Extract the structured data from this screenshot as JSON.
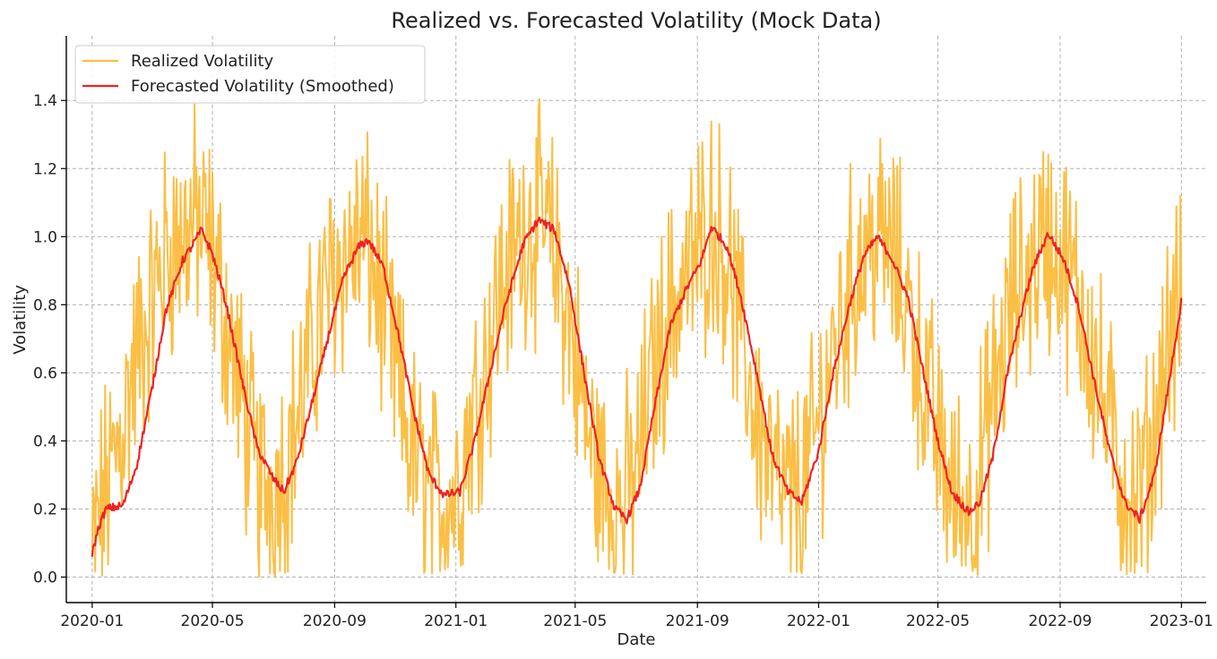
{
  "chart_data": {
    "type": "line",
    "title": "Realized vs. Forecasted Volatility (Mock Data)",
    "xlabel": "Date",
    "ylabel": "Volatility",
    "xlim": [
      "2019-12-06",
      "2023-01-26"
    ],
    "ylim": [
      -0.075,
      1.59
    ],
    "x_ticks": [
      "2020-01",
      "2020-05",
      "2020-09",
      "2021-01",
      "2021-05",
      "2021-09",
      "2022-01",
      "2022-05",
      "2022-09",
      "2023-01"
    ],
    "y_ticks": [
      "0.0",
      "0.2",
      "0.4",
      "0.6",
      "0.8",
      "1.0",
      "1.2",
      "1.4"
    ],
    "y_tick_values": [
      0.0,
      0.2,
      0.4,
      0.6,
      0.8,
      1.0,
      1.2,
      1.4
    ],
    "grid": true,
    "legend_position": "top-left",
    "colors": {
      "realized": "#fbbf45",
      "forecast": "#ee2222",
      "grid": "#b0b0b0",
      "axis": "#000000"
    },
    "series": [
      {
        "name": "Realized Volatility",
        "style": "jagged",
        "x": [
          "2020-01-01",
          "2020-01-10",
          "2020-01-20",
          "2020-02-01",
          "2020-02-15",
          "2020-03-01",
          "2020-03-15",
          "2020-04-01",
          "2020-04-15",
          "2020-05-01",
          "2020-05-15",
          "2020-06-01",
          "2020-06-15",
          "2020-07-01",
          "2020-07-15",
          "2020-08-01",
          "2020-08-15",
          "2020-09-01",
          "2020-09-15",
          "2020-10-01",
          "2020-10-15",
          "2020-11-01",
          "2020-11-15",
          "2020-12-01",
          "2020-12-15",
          "2021-01-01",
          "2021-01-15",
          "2021-02-01",
          "2021-02-15",
          "2021-03-01",
          "2021-03-15",
          "2021-04-01",
          "2021-04-15",
          "2021-05-01",
          "2021-05-15",
          "2021-06-01",
          "2021-06-15",
          "2021-07-01",
          "2021-07-15",
          "2021-08-01",
          "2021-08-15",
          "2021-09-01",
          "2021-09-15",
          "2021-10-01",
          "2021-10-15",
          "2021-11-01",
          "2021-11-15",
          "2021-12-01",
          "2021-12-15",
          "2022-01-01",
          "2022-01-15",
          "2022-02-01",
          "2022-02-15",
          "2022-03-01",
          "2022-03-15",
          "2022-04-01",
          "2022-04-15",
          "2022-05-01",
          "2022-05-15",
          "2022-06-01",
          "2022-06-15",
          "2022-07-01",
          "2022-07-15",
          "2022-08-01",
          "2022-08-15",
          "2022-09-01",
          "2022-09-15",
          "2022-10-01",
          "2022-10-15",
          "2022-11-01",
          "2022-11-15",
          "2022-12-01",
          "2022-12-15",
          "2023-01-01"
        ],
        "values": [
          0.05,
          0.2,
          0.3,
          0.45,
          0.65,
          0.8,
          0.95,
          1.0,
          1.05,
          0.95,
          0.75,
          0.5,
          0.3,
          0.25,
          0.35,
          0.55,
          0.75,
          0.9,
          0.95,
          1.0,
          0.85,
          0.6,
          0.4,
          0.25,
          0.22,
          0.25,
          0.45,
          0.65,
          0.85,
          0.95,
          1.05,
          1.02,
          0.9,
          0.65,
          0.4,
          0.25,
          0.2,
          0.3,
          0.55,
          0.75,
          0.85,
          0.95,
          1.05,
          0.95,
          0.7,
          0.45,
          0.3,
          0.22,
          0.25,
          0.45,
          0.65,
          0.85,
          0.95,
          1.0,
          0.95,
          0.8,
          0.6,
          0.4,
          0.25,
          0.2,
          0.35,
          0.6,
          0.8,
          0.9,
          1.0,
          0.95,
          0.85,
          0.7,
          0.5,
          0.3,
          0.2,
          0.35,
          0.65,
          0.8
        ]
      },
      {
        "name": "Forecasted Volatility (Smoothed)",
        "style": "smooth",
        "x": [
          "2020-01-01",
          "2020-01-08",
          "2020-01-15",
          "2020-02-01",
          "2020-02-15",
          "2020-03-01",
          "2020-03-15",
          "2020-04-01",
          "2020-04-10",
          "2020-04-20",
          "2020-05-01",
          "2020-05-15",
          "2020-06-01",
          "2020-06-15",
          "2020-07-01",
          "2020-07-12",
          "2020-07-25",
          "2020-08-10",
          "2020-08-25",
          "2020-09-10",
          "2020-09-25",
          "2020-10-05",
          "2020-10-20",
          "2020-11-05",
          "2020-11-20",
          "2020-12-05",
          "2020-12-20",
          "2021-01-05",
          "2021-01-20",
          "2021-02-05",
          "2021-02-20",
          "2021-03-10",
          "2021-03-25",
          "2021-04-10",
          "2021-04-25",
          "2021-05-10",
          "2021-05-25",
          "2021-06-10",
          "2021-06-22",
          "2021-07-05",
          "2021-07-20",
          "2021-08-05",
          "2021-08-20",
          "2021-09-05",
          "2021-09-15",
          "2021-10-01",
          "2021-10-15",
          "2021-11-01",
          "2021-11-15",
          "2021-12-01",
          "2021-12-15",
          "2022-01-01",
          "2022-01-15",
          "2022-02-01",
          "2022-02-15",
          "2022-03-01",
          "2022-03-15",
          "2022-04-01",
          "2022-04-15",
          "2022-05-01",
          "2022-05-15",
          "2022-06-01",
          "2022-06-12",
          "2022-06-25",
          "2022-07-10",
          "2022-07-25",
          "2022-08-05",
          "2022-08-20",
          "2022-09-05",
          "2022-09-20",
          "2022-10-05",
          "2022-10-20",
          "2022-11-05",
          "2022-11-20",
          "2022-12-05",
          "2022-12-20",
          "2023-01-01"
        ],
        "values": [
          0.07,
          0.15,
          0.2,
          0.21,
          0.33,
          0.55,
          0.78,
          0.93,
          0.97,
          1.02,
          0.95,
          0.8,
          0.56,
          0.38,
          0.29,
          0.25,
          0.34,
          0.52,
          0.7,
          0.88,
          0.97,
          0.99,
          0.91,
          0.7,
          0.48,
          0.3,
          0.24,
          0.25,
          0.4,
          0.61,
          0.8,
          0.98,
          1.05,
          1.02,
          0.86,
          0.6,
          0.35,
          0.2,
          0.17,
          0.26,
          0.5,
          0.74,
          0.84,
          0.93,
          1.03,
          0.97,
          0.82,
          0.58,
          0.36,
          0.25,
          0.22,
          0.37,
          0.59,
          0.8,
          0.94,
          1.0,
          0.94,
          0.82,
          0.62,
          0.4,
          0.25,
          0.19,
          0.22,
          0.35,
          0.6,
          0.79,
          0.91,
          1.01,
          0.93,
          0.79,
          0.58,
          0.38,
          0.22,
          0.17,
          0.3,
          0.58,
          0.81
        ]
      }
    ]
  }
}
